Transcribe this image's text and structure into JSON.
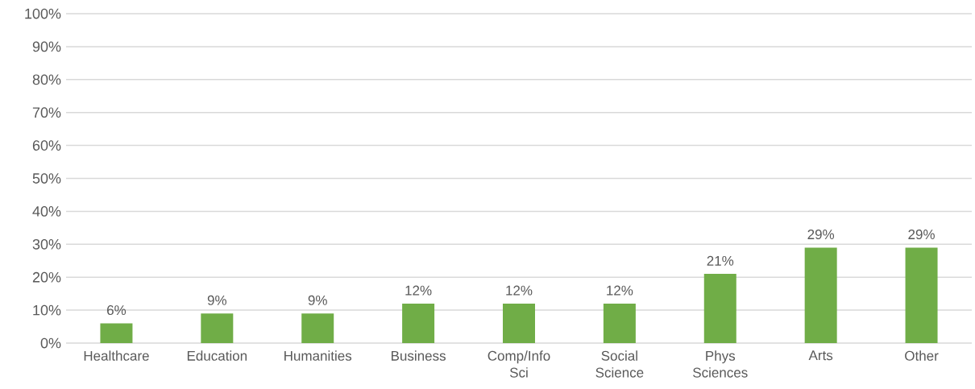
{
  "chart_data": {
    "type": "bar",
    "categories": [
      "Healthcare",
      "Education",
      "Humanities",
      "Business",
      "Comp/Info Sci",
      "Social Science",
      "Phys Sciences",
      "Arts",
      "Other"
    ],
    "values": [
      6,
      9,
      9,
      12,
      12,
      12,
      21,
      29,
      29
    ],
    "value_labels": [
      "6%",
      "9%",
      "9%",
      "12%",
      "12%",
      "12%",
      "21%",
      "29%",
      "29%"
    ],
    "color": "#70ad47",
    "ylim": [
      0,
      100
    ],
    "yticks": [
      {
        "value": 0,
        "label": "0%"
      },
      {
        "value": 10,
        "label": "10%"
      },
      {
        "value": 20,
        "label": "20%"
      },
      {
        "value": 30,
        "label": "30%"
      },
      {
        "value": 40,
        "label": "40%"
      },
      {
        "value": 50,
        "label": "50%"
      },
      {
        "value": 60,
        "label": "60%"
      },
      {
        "value": 70,
        "label": "70%"
      },
      {
        "value": 80,
        "label": "80%"
      },
      {
        "value": 90,
        "label": "90%"
      },
      {
        "value": 100,
        "label": "100%"
      }
    ],
    "grid": "y"
  }
}
